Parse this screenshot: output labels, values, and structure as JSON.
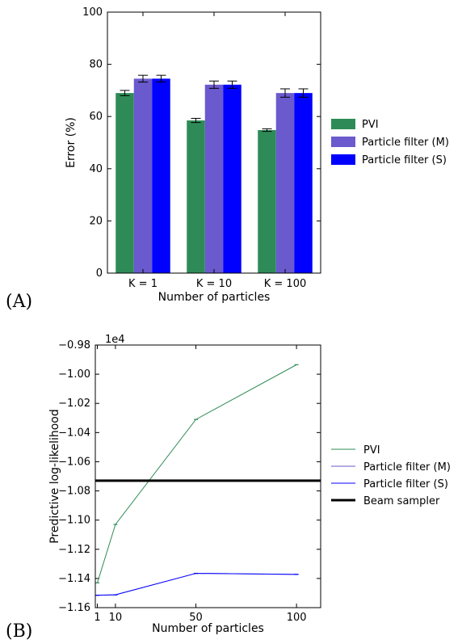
{
  "chart_data": [
    {
      "type": "bar",
      "panel_label": "(A)",
      "categories": [
        "K = 1",
        "K = 10",
        "K = 100"
      ],
      "series": [
        {
          "name": "PVI",
          "color": "#2e8b57",
          "values": [
            69,
            58.5,
            54.8
          ],
          "errors": [
            1.0,
            0.8,
            0.5
          ]
        },
        {
          "name": "Particle filter (M)",
          "color": "#6a5acd",
          "values": [
            74.5,
            72.2,
            69
          ],
          "errors": [
            1.3,
            1.4,
            1.6
          ]
        },
        {
          "name": "Particle filter (S)",
          "color": "#0000ff",
          "values": [
            74.5,
            72.2,
            69
          ],
          "errors": [
            1.3,
            1.4,
            1.6
          ]
        }
      ],
      "xlabel": "Number of particles",
      "ylabel": "Error (%)",
      "ylim": [
        0,
        100
      ],
      "yticks": [
        "0",
        "20",
        "40",
        "60",
        "80",
        "100"
      ],
      "legend_position": "right"
    },
    {
      "type": "line",
      "panel_label": "(B)",
      "x": [
        1,
        10,
        50,
        100
      ],
      "xticks": [
        "1",
        "10",
        "50",
        "100"
      ],
      "xlim": [
        0,
        112
      ],
      "series": [
        {
          "name": "PVI",
          "color": "#2e8b57",
          "values": [
            -11430,
            -11030,
            -10310,
            -9935
          ]
        },
        {
          "name": "Particle filter (M)",
          "color": "#6a5acd",
          "values": [
            -11515,
            -11512,
            -11365,
            -11372
          ]
        },
        {
          "name": "Particle filter (S)",
          "color": "#0000ff",
          "values": [
            -11515,
            -11512,
            -11365,
            -11372
          ]
        },
        {
          "name": "Beam sampler",
          "color": "#000000",
          "constant": -10730
        }
      ],
      "xlabel": "Number of particles",
      "ylabel": "Predictive log-likelihood",
      "ylim": [
        -11600,
        -9800
      ],
      "yticks": [
        "−1.16",
        "−1.14",
        "−1.12",
        "−1.10",
        "−1.08",
        "−1.06",
        "−1.04",
        "−1.02",
        "−1.00",
        "−0.98"
      ],
      "offset_text": "1e4",
      "legend_position": "right"
    }
  ]
}
